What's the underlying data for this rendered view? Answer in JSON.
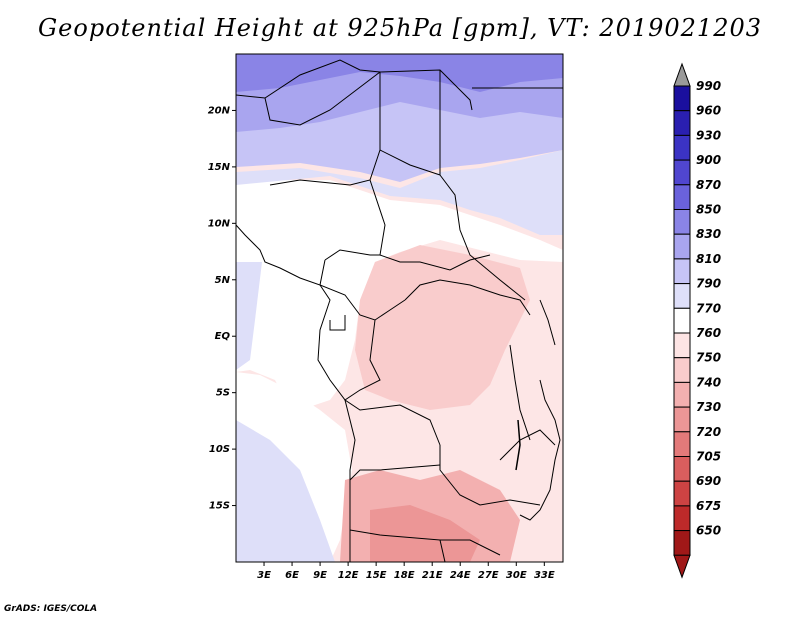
{
  "title": "Geopotential Height at 925hPa [gpm], VT: 2019021203",
  "footer": "GrADS: IGES/COLA",
  "map": {
    "lon_range": [
      0,
      35
    ],
    "lat_range": [
      -20,
      25
    ],
    "lon_ticks": [
      "3E",
      "6E",
      "9E",
      "12E",
      "15E",
      "18E",
      "21E",
      "24E",
      "27E",
      "30E",
      "33E"
    ],
    "lat_ticks": [
      "20N",
      "15N",
      "10N",
      "5N",
      "EQ",
      "5S",
      "10S",
      "15S"
    ]
  },
  "colorbar": {
    "labels": [
      "990",
      "960",
      "930",
      "900",
      "870",
      "850",
      "830",
      "810",
      "790",
      "770",
      "760",
      "750",
      "740",
      "730",
      "720",
      "705",
      "690",
      "675",
      "650"
    ],
    "colors": [
      "#1a0f9e",
      "#2a1fb0",
      "#3b33c4",
      "#5046d0",
      "#6a62dc",
      "#8a84e6",
      "#a9a5ef",
      "#c6c4f6",
      "#dedff9",
      "#ffffff",
      "#fde4e4",
      "#f9cccc",
      "#f3b0b0",
      "#ec9696",
      "#e37a7a",
      "#d95e5e",
      "#cd4343",
      "#bd2a2a",
      "#a01818"
    ],
    "top_arrow_color": "#9a9a9a",
    "bottom_arrow_color": "#a01818"
  }
}
